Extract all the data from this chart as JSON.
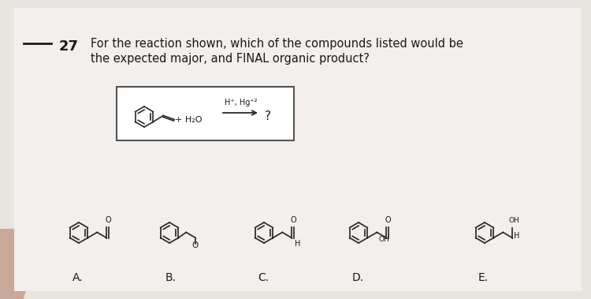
{
  "bg_color": "#e8e4e0",
  "paper_color": "#f2efec",
  "font_color": "#1a1a1a",
  "line_color": "#2a2a2a",
  "box_color": "#555555",
  "question_number": "27",
  "q_line1": "For the reaction shown, which of the compounds listed would be",
  "q_line2": "the expected major, and FINAL organic product?",
  "answer_labels": [
    "A.",
    "B.",
    "C.",
    "D.",
    "E."
  ],
  "reactant_water": "+ H₂O",
  "arrow_text": "H⁺, Hg⁺²",
  "product_q": "?",
  "finger_color": "#c8a898"
}
